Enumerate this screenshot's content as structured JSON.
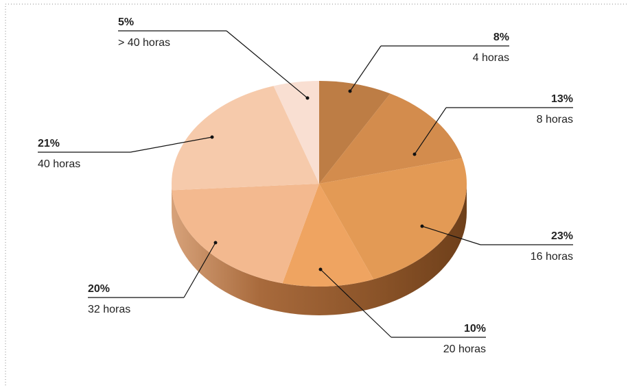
{
  "chart_data": {
    "type": "pie",
    "categories": [
      "4 horas",
      "8 horas",
      "16 horas",
      "20 horas",
      "32 horas",
      "40 horas",
      "> 40 horas"
    ],
    "values": [
      8,
      13,
      23,
      10,
      20,
      21,
      5
    ],
    "value_labels": [
      "8%",
      "13%",
      "23%",
      "10%",
      "20%",
      "21%",
      "5%"
    ],
    "colors": [
      "#bd7d45",
      "#d38c4d",
      "#e39a55",
      "#efa461",
      "#f3b98f",
      "#f6caab",
      "#f9dfd2"
    ]
  }
}
